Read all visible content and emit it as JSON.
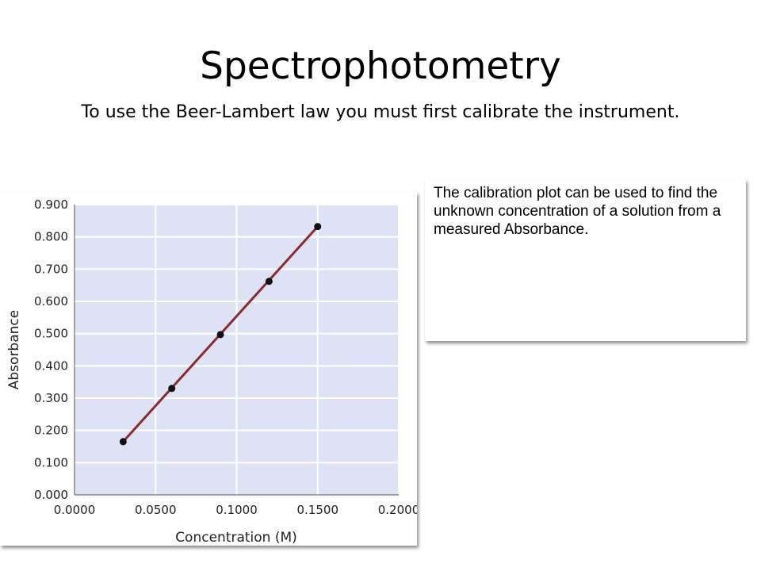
{
  "slide": {
    "title": "Spectrophotometry",
    "subtitle": "To use the Beer-Lambert law you must first calibrate the instrument."
  },
  "note": {
    "text": "The calibration plot can be used to find the unknown concentration of a solution from a measured Absorbance."
  },
  "colors": {
    "plot_background": "#dde3f5",
    "gridline": "#ffffff",
    "line": "#8b2a2f",
    "point": "#111111"
  },
  "chart_data": {
    "type": "scatter",
    "title": "",
    "xlabel": "Concentration (M)",
    "ylabel": "Absorbance",
    "xlim": [
      0,
      0.2
    ],
    "ylim": [
      0,
      0.9
    ],
    "x_ticks": [
      0,
      0.05,
      0.1,
      0.15,
      0.2
    ],
    "x_tick_labels": [
      "0.0000",
      "0.0500",
      "0.1000",
      "0.1500",
      "0.2000"
    ],
    "y_ticks": [
      0,
      0.1,
      0.2,
      0.3,
      0.4,
      0.5,
      0.6,
      0.7,
      0.8,
      0.9
    ],
    "y_tick_labels": [
      "0.000",
      "0.100",
      "0.200",
      "0.300",
      "0.400",
      "0.500",
      "0.600",
      "0.700",
      "0.800",
      "0.900"
    ],
    "grid": true,
    "series": [
      {
        "x": [
          0.03,
          0.06,
          0.09,
          0.12,
          0.15
        ],
        "y": [
          0.165,
          0.33,
          0.497,
          0.662,
          0.832
        ]
      }
    ],
    "fit_line": {
      "x": [
        0.03,
        0.15
      ],
      "y": [
        0.165,
        0.832
      ]
    }
  }
}
